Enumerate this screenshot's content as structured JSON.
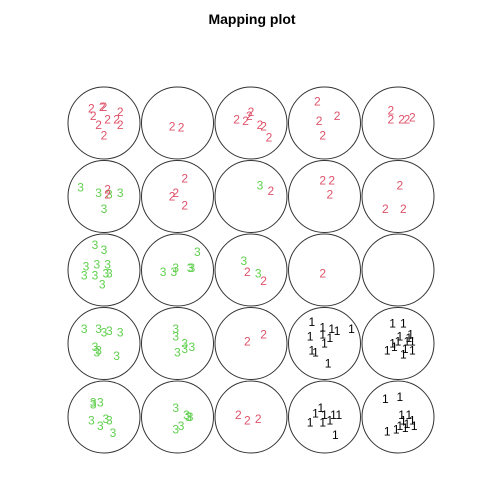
{
  "chart_data": {
    "type": "scatter",
    "title": "Mapping plot",
    "grid": {
      "rows": 5,
      "cols": 5
    },
    "colors": {
      "1": "#000000",
      "2": "#df536b",
      "3": "#61d04f"
    },
    "cells": [
      {
        "row": 1,
        "col": 1,
        "points": [
          {
            "label": "2",
            "x": -0.35,
            "y": -0.4
          },
          {
            "label": "2",
            "x": -0.05,
            "y": -0.45
          },
          {
            "label": "2",
            "x": 0.0,
            "y": -0.45
          },
          {
            "label": "2",
            "x": 0.45,
            "y": -0.3
          },
          {
            "label": "2",
            "x": -0.3,
            "y": -0.2
          },
          {
            "label": "2",
            "x": 0.1,
            "y": -0.1
          },
          {
            "label": "2",
            "x": 0.35,
            "y": -0.1
          },
          {
            "label": "2",
            "x": -0.15,
            "y": 0.05
          },
          {
            "label": "2",
            "x": 0.45,
            "y": 0.05
          },
          {
            "label": "2",
            "x": 0.0,
            "y": 0.35
          }
        ]
      },
      {
        "row": 1,
        "col": 2,
        "points": [
          {
            "label": "2",
            "x": -0.15,
            "y": 0.1
          },
          {
            "label": "2",
            "x": 0.1,
            "y": 0.12
          }
        ]
      },
      {
        "row": 1,
        "col": 3,
        "points": [
          {
            "label": "2",
            "x": -0.4,
            "y": -0.1
          },
          {
            "label": "2",
            "x": -0.05,
            "y": -0.2
          },
          {
            "label": "2",
            "x": 0.0,
            "y": -0.3
          },
          {
            "label": "2",
            "x": -0.15,
            "y": -0.05
          },
          {
            "label": "2",
            "x": 0.25,
            "y": 0.05
          },
          {
            "label": "2",
            "x": 0.35,
            "y": 0.1
          },
          {
            "label": "2",
            "x": 0.5,
            "y": 0.4
          }
        ]
      },
      {
        "row": 1,
        "col": 4,
        "points": [
          {
            "label": "2",
            "x": -0.2,
            "y": -0.6
          },
          {
            "label": "2",
            "x": 0.35,
            "y": -0.2
          },
          {
            "label": "2",
            "x": -0.15,
            "y": -0.05
          },
          {
            "label": "2",
            "x": -0.05,
            "y": 0.35
          }
        ]
      },
      {
        "row": 1,
        "col": 5,
        "points": [
          {
            "label": "2",
            "x": -0.2,
            "y": -0.35
          },
          {
            "label": "2",
            "x": -0.2,
            "y": -0.1
          },
          {
            "label": "2",
            "x": 0.1,
            "y": -0.1
          },
          {
            "label": "2",
            "x": 0.25,
            "y": -0.1
          },
          {
            "label": "2",
            "x": 0.4,
            "y": -0.15
          }
        ]
      },
      {
        "row": 2,
        "col": 1,
        "points": [
          {
            "label": "3",
            "x": -0.65,
            "y": -0.25
          },
          {
            "label": "3",
            "x": -0.15,
            "y": -0.1
          },
          {
            "label": "2",
            "x": 0.1,
            "y": -0.2
          },
          {
            "label": "3",
            "x": 0.15,
            "y": -0.05
          },
          {
            "label": "3",
            "x": 0.45,
            "y": -0.1
          },
          {
            "label": "2",
            "x": 0.1,
            "y": -0.05
          },
          {
            "label": "3",
            "x": 0.0,
            "y": 0.35
          }
        ]
      },
      {
        "row": 2,
        "col": 2,
        "points": [
          {
            "label": "2",
            "x": 0.2,
            "y": -0.5
          },
          {
            "label": "2",
            "x": -0.05,
            "y": -0.1
          },
          {
            "label": "2",
            "x": -0.15,
            "y": 0.0
          },
          {
            "label": "2",
            "x": 0.2,
            "y": 0.25
          }
        ]
      },
      {
        "row": 2,
        "col": 3,
        "points": [
          {
            "label": "3",
            "x": 0.25,
            "y": -0.3
          },
          {
            "label": "2",
            "x": 0.55,
            "y": -0.15
          }
        ]
      },
      {
        "row": 2,
        "col": 4,
        "points": [
          {
            "label": "2",
            "x": -0.05,
            "y": -0.45
          },
          {
            "label": "2",
            "x": 0.2,
            "y": -0.45
          },
          {
            "label": "2",
            "x": 0.15,
            "y": -0.05
          }
        ]
      },
      {
        "row": 2,
        "col": 5,
        "points": [
          {
            "label": "2",
            "x": 0.05,
            "y": -0.3
          },
          {
            "label": "2",
            "x": -0.35,
            "y": 0.35
          },
          {
            "label": "2",
            "x": 0.15,
            "y": 0.35
          }
        ]
      },
      {
        "row": 3,
        "col": 1,
        "points": [
          {
            "label": "3",
            "x": -0.25,
            "y": -0.7
          },
          {
            "label": "3",
            "x": 0.0,
            "y": -0.55
          },
          {
            "label": "3",
            "x": -0.5,
            "y": -0.1
          },
          {
            "label": "3",
            "x": -0.2,
            "y": -0.15
          },
          {
            "label": "3",
            "x": 0.1,
            "y": -0.15
          },
          {
            "label": "3",
            "x": -0.55,
            "y": 0.15
          },
          {
            "label": "3",
            "x": -0.25,
            "y": 0.15
          },
          {
            "label": "3",
            "x": 0.05,
            "y": 0.1
          },
          {
            "label": "3",
            "x": 0.15,
            "y": 0.1
          },
          {
            "label": "3",
            "x": -0.05,
            "y": 0.4
          }
        ]
      },
      {
        "row": 3,
        "col": 2,
        "points": [
          {
            "label": "3",
            "x": 0.55,
            "y": -0.5
          },
          {
            "label": "3",
            "x": 0.35,
            "y": -0.05
          },
          {
            "label": "3",
            "x": 0.4,
            "y": -0.05
          },
          {
            "label": "3",
            "x": -0.05,
            "y": -0.05
          },
          {
            "label": "3",
            "x": -0.4,
            "y": 0.05
          },
          {
            "label": "3",
            "x": -0.1,
            "y": 0.05
          }
        ]
      },
      {
        "row": 3,
        "col": 3,
        "points": [
          {
            "label": "3",
            "x": -0.2,
            "y": -0.25
          },
          {
            "label": "2",
            "x": -0.1,
            "y": 0.05
          },
          {
            "label": "3",
            "x": 0.2,
            "y": 0.1
          },
          {
            "label": "2",
            "x": 0.35,
            "y": 0.3
          }
        ]
      },
      {
        "row": 3,
        "col": 4,
        "points": [
          {
            "label": "2",
            "x": -0.05,
            "y": 0.1
          }
        ]
      },
      {
        "row": 3,
        "col": 5,
        "points": []
      },
      {
        "row": 4,
        "col": 1,
        "points": [
          {
            "label": "3",
            "x": -0.55,
            "y": -0.4
          },
          {
            "label": "3",
            "x": -0.15,
            "y": -0.4
          },
          {
            "label": "3",
            "x": 0.0,
            "y": -0.3
          },
          {
            "label": "3",
            "x": 0.15,
            "y": -0.35
          },
          {
            "label": "3",
            "x": 0.45,
            "y": -0.3
          },
          {
            "label": "3",
            "x": -0.25,
            "y": 0.1
          },
          {
            "label": "3",
            "x": -0.15,
            "y": 0.2
          },
          {
            "label": "3",
            "x": -0.2,
            "y": 0.25
          },
          {
            "label": "3",
            "x": 0.35,
            "y": 0.35
          }
        ]
      },
      {
        "row": 4,
        "col": 2,
        "points": [
          {
            "label": "3",
            "x": -0.05,
            "y": -0.4
          },
          {
            "label": "3",
            "x": -0.05,
            "y": -0.2
          },
          {
            "label": "3",
            "x": 0.2,
            "y": 0.0
          },
          {
            "label": "3",
            "x": 0.4,
            "y": 0.1
          },
          {
            "label": "3",
            "x": 0.2,
            "y": 0.15
          },
          {
            "label": "3",
            "x": 0.0,
            "y": 0.25
          }
        ]
      },
      {
        "row": 4,
        "col": 3,
        "points": [
          {
            "label": "2",
            "x": 0.35,
            "y": -0.25
          },
          {
            "label": "2",
            "x": -0.1,
            "y": -0.05
          }
        ]
      },
      {
        "row": 4,
        "col": 4,
        "points": [
          {
            "label": "1",
            "x": -0.35,
            "y": -0.6
          },
          {
            "label": "1",
            "x": -0.05,
            "y": -0.45
          },
          {
            "label": "1",
            "x": 0.2,
            "y": -0.4
          },
          {
            "label": "1",
            "x": 0.75,
            "y": -0.4
          },
          {
            "label": "1",
            "x": -0.4,
            "y": -0.2
          },
          {
            "label": "1",
            "x": -0.05,
            "y": -0.25
          },
          {
            "label": "1",
            "x": 0.35,
            "y": -0.35
          },
          {
            "label": "1",
            "x": 0.15,
            "y": -0.15
          },
          {
            "label": "1",
            "x": 0.0,
            "y": 0.0
          },
          {
            "label": "1",
            "x": -0.35,
            "y": 0.2
          },
          {
            "label": "1",
            "x": -0.25,
            "y": 0.25
          },
          {
            "label": "1",
            "x": 0.1,
            "y": 0.55
          }
        ]
      },
      {
        "row": 4,
        "col": 5,
        "points": [
          {
            "label": "1",
            "x": -0.15,
            "y": -0.55
          },
          {
            "label": "1",
            "x": 0.15,
            "y": -0.55
          },
          {
            "label": "1",
            "x": 0.35,
            "y": -0.25
          },
          {
            "label": "1",
            "x": 0.05,
            "y": -0.2
          },
          {
            "label": "1",
            "x": 0.3,
            "y": -0.15
          },
          {
            "label": "1",
            "x": 0.4,
            "y": -0.05
          },
          {
            "label": "1",
            "x": 0.25,
            "y": -0.05
          },
          {
            "label": "1",
            "x": 0.0,
            "y": -0.05
          },
          {
            "label": "1",
            "x": -0.15,
            "y": 0.0
          },
          {
            "label": "1",
            "x": -0.1,
            "y": 0.1
          },
          {
            "label": "1",
            "x": 0.2,
            "y": 0.15
          },
          {
            "label": "1",
            "x": 0.4,
            "y": 0.2
          },
          {
            "label": "1",
            "x": -0.3,
            "y": 0.2
          },
          {
            "label": "1",
            "x": 0.15,
            "y": 0.3
          }
        ]
      },
      {
        "row": 5,
        "col": 1,
        "points": [
          {
            "label": "3",
            "x": -0.3,
            "y": -0.4
          },
          {
            "label": "3",
            "x": -0.1,
            "y": -0.4
          },
          {
            "label": "3",
            "x": -0.3,
            "y": -0.35
          },
          {
            "label": "3",
            "x": -0.35,
            "y": 0.1
          },
          {
            "label": "3",
            "x": 0.05,
            "y": 0.05
          },
          {
            "label": "3",
            "x": 0.15,
            "y": 0.1
          },
          {
            "label": "3",
            "x": -0.1,
            "y": 0.25
          },
          {
            "label": "3",
            "x": 0.25,
            "y": 0.45
          }
        ]
      },
      {
        "row": 5,
        "col": 2,
        "points": [
          {
            "label": "3",
            "x": -0.05,
            "y": -0.25
          },
          {
            "label": "3",
            "x": 0.25,
            "y": -0.05
          },
          {
            "label": "3",
            "x": 0.3,
            "y": 0.0
          },
          {
            "label": "3",
            "x": 0.35,
            "y": 0.0
          },
          {
            "label": "3",
            "x": 0.1,
            "y": 0.25
          },
          {
            "label": "3",
            "x": -0.05,
            "y": 0.35
          }
        ]
      },
      {
        "row": 5,
        "col": 3,
        "points": [
          {
            "label": "2",
            "x": -0.35,
            "y": -0.05
          },
          {
            "label": "2",
            "x": -0.1,
            "y": 0.1
          },
          {
            "label": "2",
            "x": 0.2,
            "y": 0.05
          }
        ]
      },
      {
        "row": 5,
        "col": 4,
        "points": [
          {
            "label": "1",
            "x": -0.1,
            "y": -0.25
          },
          {
            "label": "1",
            "x": -0.25,
            "y": -0.1
          },
          {
            "label": "1",
            "x": 0.0,
            "y": -0.05
          },
          {
            "label": "1",
            "x": 0.25,
            "y": -0.05
          },
          {
            "label": "1",
            "x": 0.4,
            "y": -0.05
          },
          {
            "label": "1",
            "x": -0.4,
            "y": 0.15
          },
          {
            "label": "1",
            "x": 0.15,
            "y": 0.1
          },
          {
            "label": "1",
            "x": -0.05,
            "y": 0.15
          },
          {
            "label": "1",
            "x": 0.3,
            "y": 0.5
          }
        ]
      },
      {
        "row": 5,
        "col": 5,
        "points": [
          {
            "label": "1",
            "x": -0.35,
            "y": -0.5
          },
          {
            "label": "1",
            "x": 0.05,
            "y": -0.55
          },
          {
            "label": "1",
            "x": 0.3,
            "y": -0.05
          },
          {
            "label": "1",
            "x": 0.1,
            "y": -0.05
          },
          {
            "label": "1",
            "x": 0.15,
            "y": 0.1
          },
          {
            "label": "1",
            "x": 0.4,
            "y": 0.1
          },
          {
            "label": "1",
            "x": 0.25,
            "y": 0.2
          },
          {
            "label": "1",
            "x": 0.05,
            "y": 0.25
          },
          {
            "label": "1",
            "x": -0.3,
            "y": 0.4
          },
          {
            "label": "1",
            "x": -0.05,
            "y": 0.35
          },
          {
            "label": "1",
            "x": 0.2,
            "y": 0.3
          },
          {
            "label": "1",
            "x": 0.45,
            "y": 0.25
          }
        ]
      }
    ]
  }
}
